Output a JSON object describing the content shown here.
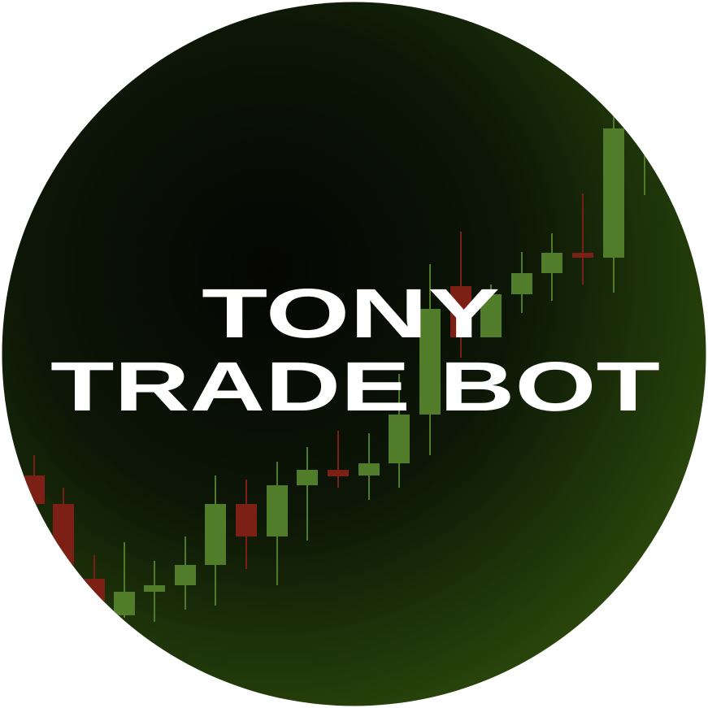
{
  "logo": {
    "line1": "TONY",
    "line2": "TRADE BOT"
  }
}
